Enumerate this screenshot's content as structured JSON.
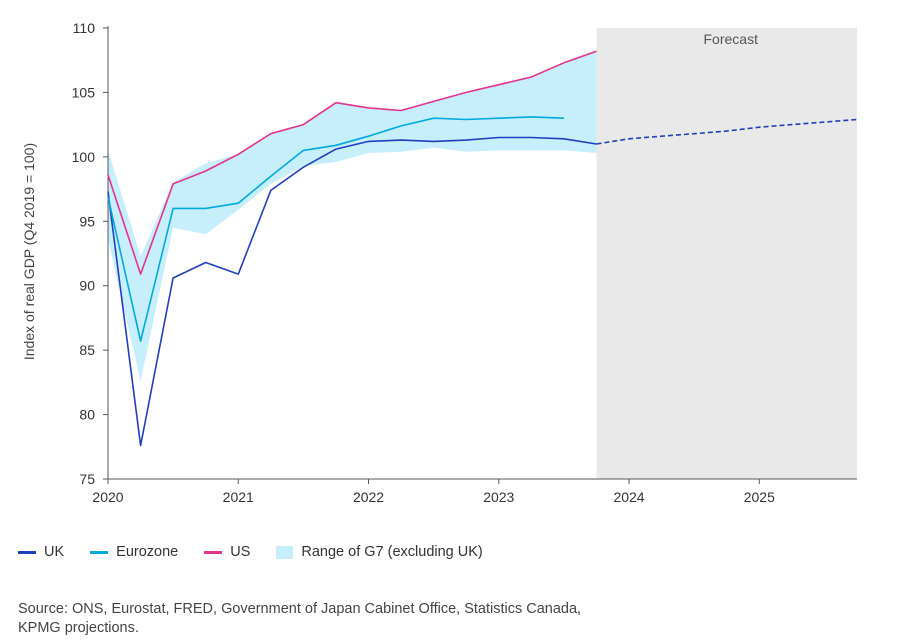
{
  "chart_data": {
    "type": "line",
    "ylabel": "Index of real GDP (Q4 2019 = 100)",
    "xlabel": "",
    "ylim": [
      75,
      110
    ],
    "yticks": [
      75,
      80,
      85,
      90,
      95,
      100,
      105,
      110
    ],
    "xlim": [
      2020.0,
      2025.75
    ],
    "xticks": [
      2020,
      2021,
      2022,
      2023,
      2024,
      2025
    ],
    "xtick_labels": [
      "2020",
      "2021",
      "2022",
      "2023",
      "2024",
      "2025"
    ],
    "forecast_region": {
      "x_start": 2023.75,
      "x_end": 2025.75,
      "label": "Forecast"
    },
    "series": [
      {
        "name": "UK",
        "color": "#1f3fbf",
        "x": [
          2020.0,
          2020.25,
          2020.5,
          2020.75,
          2021.0,
          2021.25,
          2021.5,
          2021.75,
          2022.0,
          2022.25,
          2022.5,
          2022.75,
          2023.0,
          2023.25,
          2023.5,
          2023.75
        ],
        "values": [
          97.3,
          77.6,
          90.6,
          91.8,
          90.9,
          97.4,
          99.2,
          100.6,
          101.2,
          101.3,
          101.2,
          101.3,
          101.5,
          101.5,
          101.4,
          101.0
        ]
      },
      {
        "name": "UK forecast",
        "color": "#1f3fbf",
        "dashed": true,
        "x": [
          2023.75,
          2024.0,
          2024.25,
          2024.5,
          2024.75,
          2025.0,
          2025.25,
          2025.5,
          2025.75
        ],
        "values": [
          101.0,
          101.4,
          101.6,
          101.8,
          102.0,
          102.3,
          102.5,
          102.7,
          102.9
        ]
      },
      {
        "name": "Eurozone",
        "color": "#00a9e0",
        "x": [
          2020.0,
          2020.25,
          2020.5,
          2020.75,
          2021.0,
          2021.25,
          2021.5,
          2021.75,
          2022.0,
          2022.25,
          2022.5,
          2022.75,
          2023.0,
          2023.25,
          2023.5
        ],
        "values": [
          96.9,
          85.7,
          96.0,
          96.0,
          96.4,
          98.5,
          100.5,
          100.9,
          101.6,
          102.4,
          103.0,
          102.9,
          103.0,
          103.1,
          103.0
        ]
      },
      {
        "name": "US",
        "color": "#e5338c",
        "x": [
          2020.0,
          2020.25,
          2020.5,
          2020.75,
          2021.0,
          2021.25,
          2021.5,
          2021.75,
          2022.0,
          2022.25,
          2022.5,
          2022.75,
          2023.0,
          2023.25,
          2023.5,
          2023.75
        ],
        "values": [
          98.6,
          90.9,
          97.9,
          98.9,
          100.2,
          101.8,
          102.5,
          104.2,
          103.8,
          103.6,
          104.3,
          105.0,
          105.6,
          106.2,
          107.3,
          108.2
        ]
      }
    ],
    "band": {
      "name": "Range of G7 (excluding UK)",
      "color": "#c6eefb",
      "x": [
        2020.0,
        2020.25,
        2020.5,
        2020.75,
        2021.0,
        2021.25,
        2021.5,
        2021.75,
        2022.0,
        2022.25,
        2022.5,
        2022.75,
        2023.0,
        2023.25,
        2023.5,
        2023.75
      ],
      "upper": [
        100.5,
        92.3,
        98.0,
        99.5,
        100.2,
        101.7,
        102.5,
        104.2,
        103.8,
        103.6,
        104.3,
        105.0,
        105.6,
        106.2,
        107.3,
        108.2
      ],
      "lower": [
        93.6,
        82.6,
        94.5,
        94.0,
        95.9,
        97.9,
        99.3,
        99.6,
        100.3,
        100.4,
        100.7,
        100.4,
        100.5,
        100.5,
        100.5,
        100.3
      ]
    },
    "legend": {
      "placement": "bottom-left",
      "items": [
        {
          "label": "UK",
          "kind": "line",
          "color": "#1f3fbf"
        },
        {
          "label": "Eurozone",
          "kind": "line",
          "color": "#00a9e0"
        },
        {
          "label": "US",
          "kind": "line",
          "color": "#e5338c"
        },
        {
          "label": "Range of G7 (excluding UK)",
          "kind": "area",
          "color": "#c6eefb"
        }
      ]
    },
    "grid": false
  },
  "source": {
    "line1": "Source: ONS, Eurostat, FRED, Government of Japan Cabinet Office, Statistics Canada,",
    "line2": "KPMG projections."
  }
}
